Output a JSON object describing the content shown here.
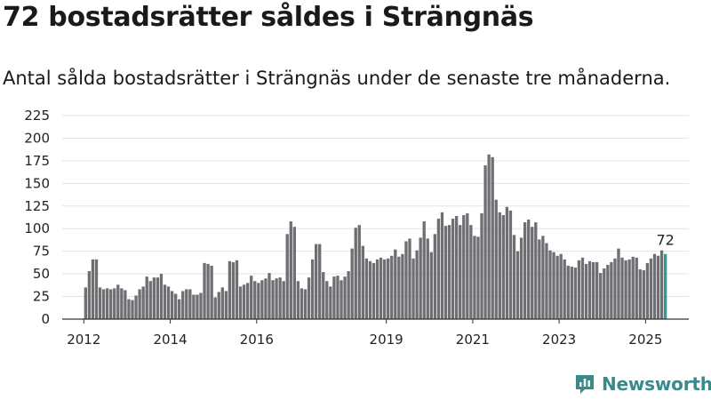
{
  "title": "72 bostadsrätter såldes i Strängnäs",
  "subtitle": "Antal sålda bostadsrätter i Strängnäs under de senaste tre månaderna.",
  "brand": {
    "name": "Newsworthy",
    "icon": "newsworthy-logo-icon",
    "color": "#3a8a8a"
  },
  "colors": {
    "bar": "#6e6e73",
    "highlight": "#2a9d96",
    "grid": "#e3e3e3",
    "axis": "#333333"
  },
  "chart_data": {
    "type": "bar",
    "ylim": [
      0,
      225
    ],
    "y_ticks": [
      0,
      25,
      50,
      75,
      100,
      125,
      150,
      175,
      200,
      225
    ],
    "x_range": [
      2011.5,
      2026.0
    ],
    "x_ticks": [
      {
        "label": "2012",
        "x": 2012
      },
      {
        "label": "2014",
        "x": 2014
      },
      {
        "label": "2016",
        "x": 2016
      },
      {
        "label": "2019",
        "x": 2019
      },
      {
        "label": "2021",
        "x": 2021
      },
      {
        "label": "2023",
        "x": 2023
      },
      {
        "label": "2025",
        "x": 2025
      }
    ],
    "series": [
      {
        "start": "2012-01",
        "values": [
          35,
          53,
          66,
          66,
          35,
          33,
          34,
          33,
          34,
          38,
          34,
          32,
          22,
          21,
          26,
          33,
          36,
          47,
          42,
          46,
          46,
          50,
          38,
          36,
          31,
          28,
          22,
          31,
          33,
          33,
          27,
          27,
          29,
          62,
          61,
          59,
          24,
          30,
          35,
          31,
          64,
          63,
          65,
          36,
          38,
          40,
          48,
          42,
          40,
          43,
          45,
          51,
          43,
          45,
          46,
          42,
          94,
          108,
          102,
          42,
          34,
          33,
          46,
          66,
          83,
          83,
          52,
          42,
          36,
          47,
          48,
          43,
          47,
          53,
          78,
          101,
          104,
          81,
          67,
          64,
          62,
          66,
          68,
          66,
          67,
          70,
          77,
          69,
          72,
          86,
          89,
          67,
          76,
          90,
          108,
          89,
          74,
          94,
          111,
          118,
          103,
          104,
          111,
          114,
          104,
          115,
          117,
          104,
          92,
          91,
          117,
          170,
          182,
          179,
          132,
          118,
          115,
          124,
          120,
          93,
          75,
          90,
          107,
          110,
          102,
          107,
          88,
          92,
          84,
          76,
          74,
          70,
          72,
          66,
          59,
          58,
          57,
          65,
          68,
          61,
          64,
          63,
          63,
          51,
          56,
          60,
          63,
          67,
          78,
          68,
          65,
          66,
          69,
          68,
          55,
          54,
          62,
          67,
          72,
          70,
          76,
          72
        ]
      }
    ],
    "highlight_last": true,
    "last_label": "72"
  }
}
